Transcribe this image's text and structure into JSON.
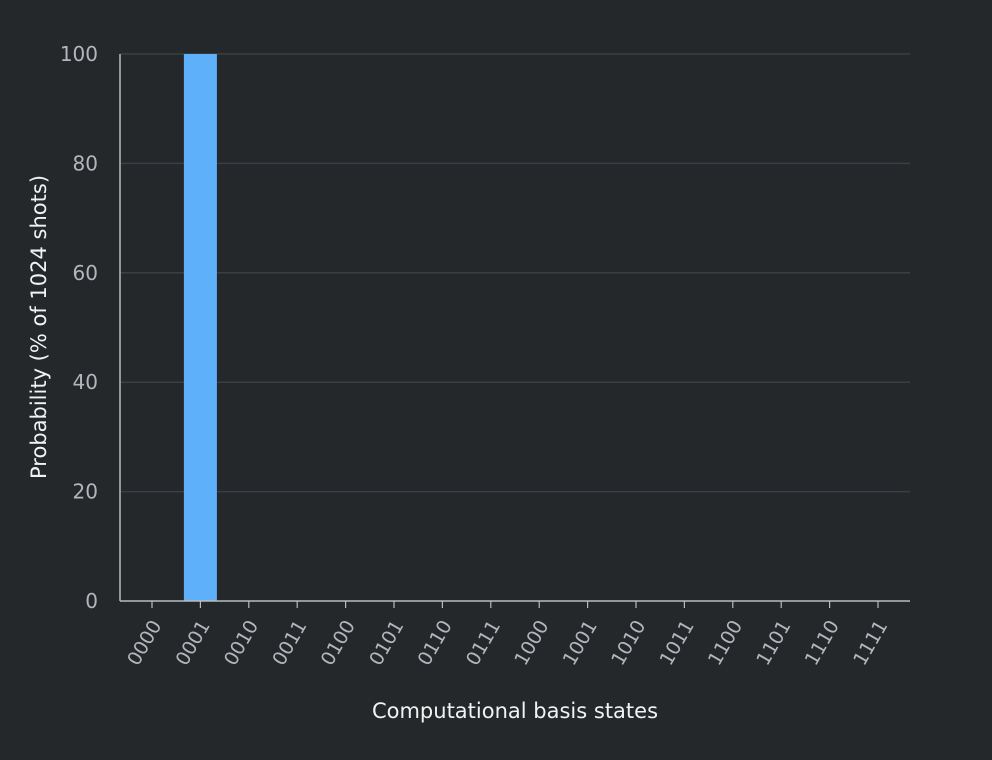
{
  "colors": {
    "background": "#24282b",
    "bar": "#5eb0fa",
    "grid": "#3a3f44",
    "axis": "#b8bcc0",
    "tick_text": "#b3b7bb",
    "label_text": "#f2f2f2"
  },
  "chart_data": {
    "type": "bar",
    "categories": [
      "0000",
      "0001",
      "0010",
      "0011",
      "0100",
      "0101",
      "0110",
      "0111",
      "1000",
      "1001",
      "1010",
      "1011",
      "1100",
      "1101",
      "1110",
      "1111"
    ],
    "values": [
      0,
      100,
      0,
      0,
      0,
      0,
      0,
      0,
      0,
      0,
      0,
      0,
      0,
      0,
      0,
      0
    ],
    "title": "",
    "xlabel": "Computational basis states",
    "ylabel": "Probability (% of 1024 shots)",
    "ylim": [
      0,
      100
    ],
    "yticks": [
      0,
      20,
      40,
      60,
      80,
      100
    ],
    "grid": true,
    "legend": "none"
  }
}
